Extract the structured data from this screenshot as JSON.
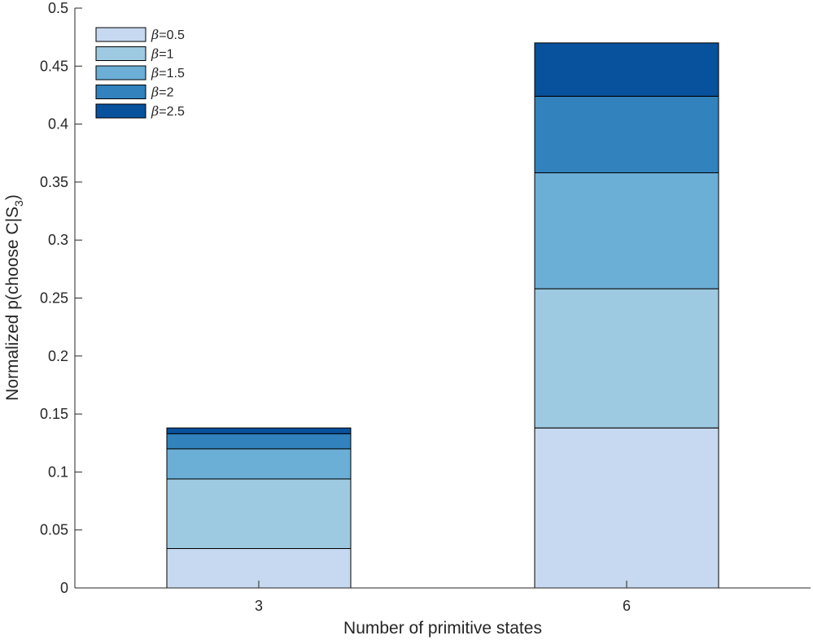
{
  "chart_data": {
    "type": "bar",
    "stacked": true,
    "categories": [
      "3",
      "6"
    ],
    "xlabel": "Number of primitive states",
    "ylabel": {
      "main": "Normalized p(choose C|S",
      "sub": "3",
      "close": ")"
    },
    "ylim": [
      0,
      0.5
    ],
    "yticks": [
      0,
      0.05,
      0.1,
      0.15,
      0.2,
      0.25,
      0.3,
      0.35,
      0.4,
      0.45,
      0.5
    ],
    "ytick_labels": [
      "0",
      "0.05",
      "0.1",
      "0.15",
      "0.2",
      "0.25",
      "0.3",
      "0.35",
      "0.4",
      "0.45",
      "0.5"
    ],
    "grid": false,
    "legend_position": "top-left",
    "series": [
      {
        "name": "β=0.5",
        "symbol": "β",
        "value_label": "=0.5",
        "color": "#c6d9f0",
        "values": [
          0.034,
          0.138
        ]
      },
      {
        "name": "β=1",
        "symbol": "β",
        "value_label": "=1",
        "color": "#9ecae1",
        "values": [
          0.06,
          0.12
        ]
      },
      {
        "name": "β=1.5",
        "symbol": "β",
        "value_label": "=1.5",
        "color": "#6baed6",
        "values": [
          0.026,
          0.1
        ]
      },
      {
        "name": "β=2",
        "symbol": "β",
        "value_label": "=2",
        "color": "#3182bd",
        "values": [
          0.013,
          0.066
        ]
      },
      {
        "name": "β=2.5",
        "symbol": "β",
        "value_label": "=2.5",
        "color": "#08519c",
        "values": [
          0.005,
          0.046
        ]
      }
    ]
  }
}
